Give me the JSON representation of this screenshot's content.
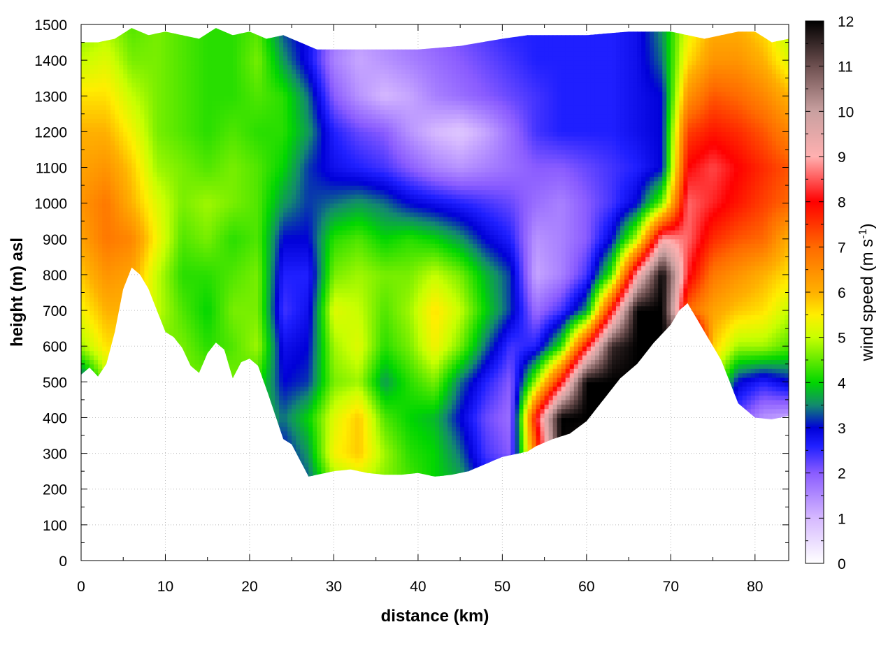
{
  "chart_data": {
    "type": "heatmap",
    "title": "",
    "xlabel": "distance (km)",
    "ylabel": "height (m) asl",
    "xlim": [
      0,
      84
    ],
    "ylim": [
      0,
      1500
    ],
    "x_ticks": [
      0,
      10,
      20,
      30,
      40,
      50,
      60,
      70,
      80
    ],
    "y_ticks": [
      0,
      100,
      200,
      300,
      400,
      500,
      600,
      700,
      800,
      900,
      1000,
      1100,
      1200,
      1300,
      1400,
      1500
    ],
    "grid": true,
    "colorbar": {
      "label_prefix": "wind speed (m s",
      "label_exponent": "-1",
      "label_suffix": ")",
      "range": [
        0,
        12
      ],
      "ticks": [
        0,
        1,
        2,
        3,
        4,
        5,
        6,
        7,
        8,
        9,
        10,
        11,
        12
      ],
      "stops": [
        {
          "v": 0,
          "color": "#ffffff"
        },
        {
          "v": 1,
          "color": "#d6b9ff"
        },
        {
          "v": 2,
          "color": "#8a5cff"
        },
        {
          "v": 2.6,
          "color": "#1f1fff"
        },
        {
          "v": 3,
          "color": "#0000d8"
        },
        {
          "v": 3.5,
          "color": "#138a6e"
        },
        {
          "v": 4,
          "color": "#00d600"
        },
        {
          "v": 5,
          "color": "#c8ff00"
        },
        {
          "v": 5.5,
          "color": "#ffee00"
        },
        {
          "v": 6,
          "color": "#ffb000"
        },
        {
          "v": 7,
          "color": "#ff6a00"
        },
        {
          "v": 8,
          "color": "#ff0000"
        },
        {
          "v": 9,
          "color": "#ffb0b0"
        },
        {
          "v": 10,
          "color": "#c9a0a0"
        },
        {
          "v": 11,
          "color": "#6e5050"
        },
        {
          "v": 12,
          "color": "#000000"
        }
      ]
    },
    "terrain": {
      "x": [
        0,
        1,
        2,
        3,
        4,
        5,
        6,
        7,
        8,
        9,
        10,
        11,
        12,
        13,
        14,
        15,
        16,
        17,
        18,
        19,
        20,
        21,
        22,
        23,
        24,
        25,
        26,
        27,
        28,
        30,
        32,
        34,
        36,
        38,
        40,
        42,
        44,
        46,
        48,
        50,
        52,
        53,
        54,
        56,
        58,
        60,
        62,
        64,
        66,
        68,
        70,
        71,
        72,
        73,
        74,
        76,
        78,
        80,
        82,
        84
      ],
      "y": [
        520,
        540,
        515,
        550,
        640,
        760,
        820,
        800,
        760,
        700,
        640,
        625,
        595,
        545,
        525,
        580,
        610,
        590,
        510,
        555,
        565,
        545,
        480,
        410,
        340,
        325,
        280,
        235,
        240,
        250,
        255,
        245,
        240,
        240,
        245,
        235,
        240,
        250,
        270,
        290,
        300,
        305,
        320,
        340,
        355,
        390,
        450,
        510,
        550,
        610,
        660,
        700,
        720,
        680,
        640,
        560,
        440,
        400,
        395,
        405
      ]
    },
    "top_boundary": {
      "x": [
        0,
        2,
        4,
        6,
        8,
        10,
        12,
        14,
        16,
        18,
        20,
        22,
        24,
        26,
        28,
        30,
        35,
        40,
        45,
        50,
        53,
        55,
        60,
        65,
        70,
        72,
        74,
        76,
        78,
        80,
        82,
        84
      ],
      "y": [
        1450,
        1450,
        1460,
        1490,
        1470,
        1480,
        1470,
        1460,
        1490,
        1470,
        1480,
        1460,
        1470,
        1450,
        1430,
        1430,
        1430,
        1430,
        1440,
        1460,
        1470,
        1470,
        1470,
        1480,
        1480,
        1470,
        1460,
        1470,
        1480,
        1480,
        1450,
        1460
      ]
    },
    "wind_field": {
      "x": [
        0,
        3,
        6,
        9,
        12,
        15,
        18,
        21,
        24,
        27,
        30,
        33,
        36,
        39,
        42,
        45,
        48,
        51,
        54,
        57,
        60,
        63,
        66,
        69,
        72,
        75,
        78,
        81,
        84
      ],
      "y": [
        200,
        300,
        400,
        500,
        600,
        700,
        800,
        900,
        1000,
        1100,
        1200,
        1300,
        1400,
        1500
      ],
      "z": [
        [
          null,
          null,
          null,
          null,
          null,
          null,
          null,
          null,
          null,
          3.2,
          4.5,
          4.8,
          4.6,
          4.4,
          4.0,
          3.8,
          3.0,
          null,
          null,
          null,
          null,
          null,
          null,
          null,
          null,
          null,
          null,
          null,
          null
        ],
        [
          null,
          null,
          null,
          null,
          null,
          null,
          null,
          null,
          3.0,
          3.6,
          5.4,
          5.8,
          4.8,
          4.2,
          4.0,
          3.4,
          2.4,
          2.0,
          7.0,
          12.0,
          11.5,
          null,
          null,
          null,
          null,
          null,
          null,
          null,
          null
        ],
        [
          null,
          null,
          null,
          null,
          null,
          null,
          null,
          4.0,
          3.4,
          4.0,
          5.2,
          5.8,
          4.4,
          4.0,
          3.8,
          3.0,
          2.2,
          1.8,
          8.0,
          12.0,
          12.0,
          12.0,
          null,
          null,
          null,
          null,
          2.2,
          1.4,
          1.2
        ],
        [
          3.0,
          4.8,
          null,
          null,
          null,
          null,
          4.6,
          4.2,
          3.0,
          3.2,
          4.6,
          4.8,
          3.6,
          4.2,
          4.6,
          3.4,
          2.6,
          2.0,
          4.8,
          8.0,
          12.0,
          12.0,
          12.0,
          null,
          null,
          5.0,
          3.0,
          2.6,
          3.0
        ],
        [
          4.8,
          5.6,
          null,
          null,
          4.6,
          4.2,
          4.4,
          4.8,
          2.8,
          3.0,
          4.8,
          5.2,
          4.2,
          4.6,
          5.4,
          4.6,
          3.4,
          2.4,
          2.6,
          4.2,
          8.0,
          11.5,
          12.0,
          12.0,
          null,
          5.8,
          4.8,
          4.8,
          4.4
        ],
        [
          5.4,
          6.0,
          null,
          5.0,
          4.4,
          4.0,
          4.6,
          4.6,
          2.4,
          2.8,
          5.2,
          5.0,
          4.4,
          4.8,
          5.6,
          5.0,
          4.0,
          3.2,
          1.8,
          2.4,
          3.6,
          8.0,
          12.0,
          12.0,
          7.0,
          6.2,
          5.8,
          5.6,
          5.0
        ],
        [
          5.8,
          6.4,
          6.2,
          5.0,
          4.2,
          4.2,
          4.4,
          4.6,
          2.6,
          2.6,
          4.6,
          4.8,
          4.6,
          4.6,
          5.0,
          4.6,
          3.8,
          3.2,
          1.2,
          1.6,
          2.4,
          4.4,
          9.0,
          12.0,
          8.2,
          6.8,
          6.4,
          6.0,
          5.6
        ],
        [
          6.2,
          6.8,
          6.6,
          5.4,
          4.4,
          4.6,
          4.2,
          4.4,
          3.0,
          3.0,
          4.2,
          4.4,
          4.0,
          4.2,
          4.0,
          3.6,
          3.0,
          2.6,
          1.4,
          1.6,
          2.0,
          3.0,
          5.0,
          9.0,
          8.6,
          7.6,
          7.2,
          7.0,
          6.0
        ],
        [
          6.4,
          6.8,
          6.0,
          5.2,
          4.6,
          4.8,
          4.6,
          4.4,
          3.6,
          3.2,
          3.4,
          3.6,
          3.4,
          3.0,
          2.8,
          2.6,
          2.4,
          2.2,
          1.8,
          1.6,
          2.0,
          2.4,
          3.0,
          4.6,
          8.6,
          8.2,
          7.8,
          7.4,
          7.0
        ],
        [
          6.2,
          6.4,
          5.8,
          4.8,
          4.6,
          4.4,
          4.6,
          4.4,
          4.0,
          3.2,
          2.8,
          2.6,
          2.4,
          2.0,
          1.6,
          1.4,
          1.6,
          1.8,
          2.0,
          2.0,
          2.2,
          2.4,
          2.6,
          3.0,
          8.0,
          8.4,
          8.0,
          7.6,
          7.2
        ],
        [
          6.0,
          6.0,
          5.4,
          4.6,
          4.4,
          4.2,
          4.4,
          4.2,
          4.2,
          3.6,
          2.6,
          2.2,
          2.0,
          1.4,
          1.0,
          0.8,
          1.2,
          1.8,
          2.4,
          2.6,
          2.6,
          2.6,
          2.8,
          3.0,
          7.4,
          7.8,
          7.6,
          7.2,
          6.6
        ],
        [
          5.6,
          5.6,
          5.0,
          4.6,
          4.4,
          4.2,
          4.2,
          4.4,
          4.2,
          3.4,
          2.0,
          1.4,
          1.0,
          1.2,
          1.6,
          1.8,
          2.0,
          2.2,
          2.4,
          2.6,
          2.6,
          2.6,
          2.8,
          3.0,
          6.4,
          7.2,
          7.0,
          6.6,
          6.0
        ],
        [
          5.0,
          5.2,
          4.6,
          4.6,
          4.4,
          4.2,
          4.2,
          4.6,
          3.6,
          2.8,
          1.6,
          1.2,
          1.4,
          1.6,
          1.8,
          2.0,
          2.2,
          2.4,
          2.6,
          2.6,
          2.6,
          2.6,
          2.8,
          3.4,
          5.6,
          6.4,
          6.4,
          6.0,
          5.2
        ],
        [
          4.6,
          4.8,
          4.4,
          4.6,
          4.4,
          4.2,
          4.2,
          4.4,
          3.2,
          2.8,
          1.8,
          1.4,
          1.6,
          1.8,
          2.0,
          2.2,
          2.4,
          2.6,
          2.6,
          2.6,
          2.6,
          2.6,
          2.8,
          3.6,
          5.2,
          6.0,
          6.0,
          5.6,
          4.8
        ]
      ]
    }
  }
}
